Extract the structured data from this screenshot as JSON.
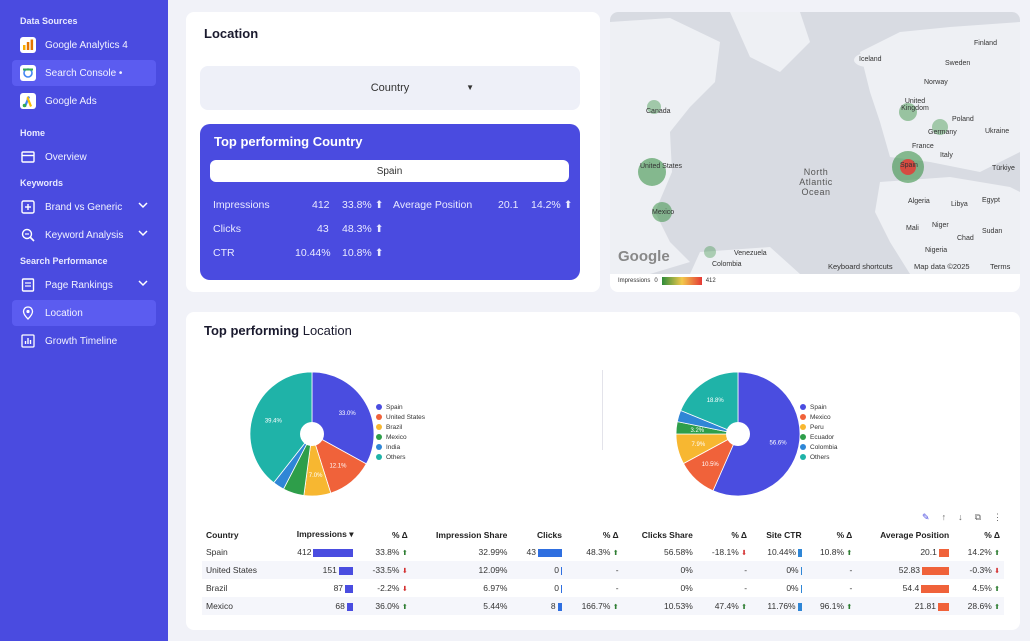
{
  "sidebar": {
    "sections": [
      "Data Sources",
      "Home",
      "Keywords",
      "Search Performance"
    ],
    "items": [
      {
        "label": "Google Analytics 4"
      },
      {
        "label": "Search Console •"
      },
      {
        "label": "Google Ads"
      },
      {
        "label": "Overview"
      },
      {
        "label": "Brand vs Generic"
      },
      {
        "label": "Keyword Analysis"
      },
      {
        "label": "Page Rankings"
      },
      {
        "label": "Location"
      },
      {
        "label": "Growth Timeline"
      }
    ]
  },
  "location": {
    "title": "Location",
    "dropdown_value": "Country",
    "top_title": "Top performing Country",
    "top_country": "Spain",
    "metrics": {
      "impressions_label": "Impressions",
      "impressions": "412",
      "impressions_delta": "33.8%",
      "avg_pos_label": "Average Position",
      "avg_pos": "20.1",
      "avg_pos_delta": "14.2%",
      "clicks_label": "Clicks",
      "clicks": "43",
      "clicks_delta": "48.3%",
      "ctr_label": "CTR",
      "ctr": "10.44%",
      "ctr_delta": "10.8%"
    }
  },
  "map": {
    "labels": [
      "Finland",
      "Iceland",
      "Sweden",
      "Norway",
      "United Kingdom",
      "Poland",
      "Germany",
      "Ukraine",
      "France",
      "Italy",
      "Spain",
      "Türkiye",
      "Canada",
      "United States",
      "North Atlantic Ocean",
      "Mexico",
      "Algeria",
      "Libya",
      "Egypt",
      "Mali",
      "Niger",
      "Chad",
      "Sudan",
      "Nigeria",
      "Venezuela",
      "Colombia"
    ],
    "google": "Google",
    "shortcuts": "Keyboard shortcuts",
    "map_data": "Map data ©2025",
    "terms": "Terms",
    "legend_label": "Impressions",
    "legend_min": "0",
    "legend_max": "412"
  },
  "performance": {
    "title_bold": "Top performing",
    "title_rest": "Location",
    "pie1_legend": [
      "Spain",
      "United States",
      "Brazil",
      "Mexico",
      "India",
      "Others"
    ],
    "pie2_legend": [
      "Spain",
      "Mexico",
      "Peru",
      "Ecuador",
      "Colombia",
      "Others"
    ],
    "columns": [
      "Country",
      "Impressions ▾",
      "% Δ",
      "Impression Share",
      "Clicks",
      "% Δ",
      "Clicks Share",
      "% Δ",
      "Site CTR",
      "% Δ",
      "Average Position",
      "% Δ"
    ],
    "rows": [
      {
        "country": "Spain",
        "impr": "412",
        "impr_d": "33.8%",
        "impr_share": "32.99%",
        "clicks": "43",
        "clicks_d": "48.3%",
        "clicks_share": "56.58%",
        "cs_d": "-18.1%",
        "ctr": "10.44%",
        "ctr_d": "10.8%",
        "pos": "20.1",
        "pos_d": "14.2%"
      },
      {
        "country": "United States",
        "impr": "151",
        "impr_d": "-33.5%",
        "impr_share": "12.09%",
        "clicks": "0",
        "clicks_d": "-",
        "clicks_share": "0%",
        "cs_d": "-",
        "ctr": "0%",
        "ctr_d": "-",
        "pos": "52.83",
        "pos_d": "-0.3%"
      },
      {
        "country": "Brazil",
        "impr": "87",
        "impr_d": "-2.2%",
        "impr_share": "6.97%",
        "clicks": "0",
        "clicks_d": "-",
        "clicks_share": "0%",
        "cs_d": "-",
        "ctr": "0%",
        "ctr_d": "-",
        "pos": "54.4",
        "pos_d": "4.5%"
      },
      {
        "country": "Mexico",
        "impr": "68",
        "impr_d": "36.0%",
        "impr_share": "5.44%",
        "clicks": "8",
        "clicks_d": "166.7%",
        "clicks_share": "10.53%",
        "cs_d": "47.4%",
        "ctr": "11.76%",
        "ctr_d": "96.1%",
        "pos": "21.81",
        "pos_d": "28.6%"
      }
    ]
  },
  "chart_data": [
    {
      "type": "pie",
      "title": "",
      "categories": [
        "Spain",
        "United States",
        "Brazil",
        "Mexico",
        "India",
        "Others"
      ],
      "values": [
        33.0,
        12.1,
        7.0,
        5.5,
        3.0,
        39.4
      ],
      "slice_labels": [
        "33.0%",
        "12.1%",
        "7.0%",
        "",
        "",
        "39.4%"
      ],
      "colors": [
        "#4a4de0",
        "#f0623a",
        "#f7b731",
        "#2e9e4a",
        "#2f86d6",
        "#1fb3a8"
      ],
      "legend": "right"
    },
    {
      "type": "pie",
      "title": "",
      "categories": [
        "Spain",
        "Mexico",
        "Peru",
        "Ecuador",
        "Colombia",
        "Others"
      ],
      "values": [
        56.6,
        10.5,
        7.9,
        3.2,
        3.0,
        18.8
      ],
      "slice_labels": [
        "56.6%",
        "10.5%",
        "7.9%",
        "3.2%",
        "",
        "18.8%"
      ],
      "colors": [
        "#4a4de0",
        "#f0623a",
        "#f7b731",
        "#2e9e4a",
        "#2f86d6",
        "#1fb3a8"
      ],
      "legend": "right"
    }
  ]
}
